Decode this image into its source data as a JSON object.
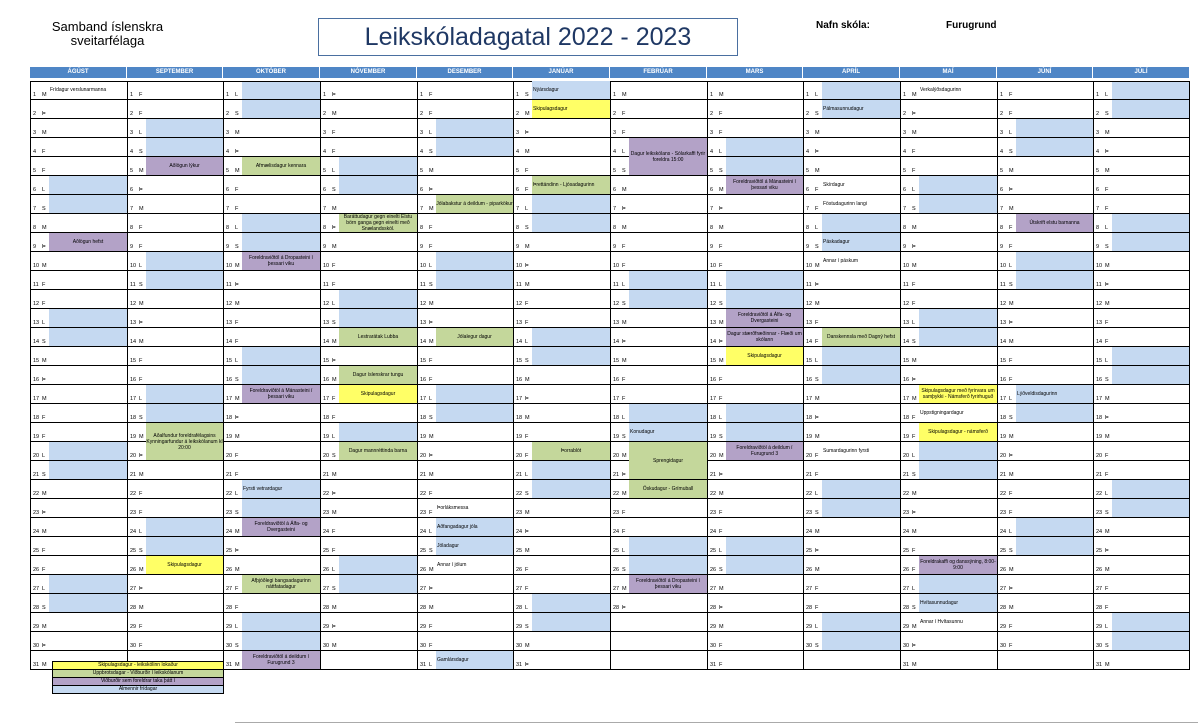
{
  "header": {
    "org_line1": "Samband íslenskra",
    "org_line2": "sveitarfélaga",
    "title": "Leikskóladagatal 2022 - 2023",
    "school_label": "Nafn skóla:",
    "school_value": "Furugrund"
  },
  "colors": {
    "header": "#4f86c6",
    "weekend": "#c5d9f1",
    "yellow": "#ffff66",
    "green": "#c4d79b",
    "purple": "#b3a2c7"
  },
  "months": [
    {
      "name": "ÁGÚST",
      "start": 1,
      "days": 31
    },
    {
      "name": "SEPTEMBER",
      "start": 4,
      "days": 30
    },
    {
      "name": "OKTÓBER",
      "start": 6,
      "days": 31
    },
    {
      "name": "NÓVEMBER",
      "start": 2,
      "days": 30
    },
    {
      "name": "DESEMBER",
      "start": 4,
      "days": 31
    },
    {
      "name": "JANÚAR",
      "start": 0,
      "days": 31
    },
    {
      "name": "FEBRÚAR",
      "start": 3,
      "days": 28
    },
    {
      "name": "MARS",
      "start": 3,
      "days": 31
    },
    {
      "name": "APRÍL",
      "start": 6,
      "days": 30
    },
    {
      "name": "MAÍ",
      "start": 1,
      "days": 31
    },
    {
      "name": "JÚNÍ",
      "start": 4,
      "days": 30
    },
    {
      "name": "JÚLÍ",
      "start": 6,
      "days": 31
    }
  ],
  "weekday_letters": [
    "S",
    "M",
    "Þ",
    "M",
    "F",
    "F",
    "L"
  ],
  "events": [
    {
      "m": 0,
      "d": 1,
      "t": "Frídagur verslunarmanna",
      "c": "",
      "a": "l"
    },
    {
      "m": 0,
      "d": 9,
      "t": "Aðlögun hefst",
      "c": "purple",
      "a": "c"
    },
    {
      "m": 1,
      "d": 5,
      "t": "Aðlögun lýkur",
      "c": "purple",
      "a": "c"
    },
    {
      "m": 1,
      "d": 20,
      "t": "Aðalfundur foreldrafélagsins Kynningarfundur á leikskólanum kl 20:00",
      "c": "green",
      "a": "c",
      "span": 2
    },
    {
      "m": 1,
      "d": 26,
      "t": "Skipulagsdagur",
      "c": "yellow",
      "a": "c"
    },
    {
      "m": 2,
      "d": 5,
      "t": "Afmælisdagur kennara",
      "c": "green",
      "a": "c"
    },
    {
      "m": 2,
      "d": 10,
      "t": "Foreldraviðtöl á Dropasteini í þessari viku",
      "c": "purple",
      "a": "c"
    },
    {
      "m": 2,
      "d": 17,
      "t": "Foreldraviðtöl á Mánasteini í þessari viku",
      "c": "purple",
      "a": "c"
    },
    {
      "m": 2,
      "d": 22,
      "t": "Fyrsti vetrardagur",
      "c": "",
      "a": "l"
    },
    {
      "m": 2,
      "d": 24,
      "t": "Foreldraviðtöl á Álfa- og Dvergasteini",
      "c": "purple",
      "a": "c"
    },
    {
      "m": 2,
      "d": 27,
      "t": "Afþjóðlegi bangsadagurinn náttfatadagur",
      "c": "green",
      "a": "c"
    },
    {
      "m": 2,
      "d": 31,
      "t": "Foreldraviðtöl á deildum í Furugrund 3",
      "c": "purple",
      "a": "c"
    },
    {
      "m": 3,
      "d": 8,
      "t": "Baráttudagur gegn einelti Elstu börn ganga gegn einelti með Snælandsskól.",
      "c": "green",
      "a": "c"
    },
    {
      "m": 3,
      "d": 14,
      "t": "Lestrarátak Lubba",
      "c": "green",
      "a": "c"
    },
    {
      "m": 3,
      "d": 16,
      "t": "Dagur íslenskrar tungu",
      "c": "green",
      "a": "c"
    },
    {
      "m": 3,
      "d": 17,
      "t": "Skipulagsdagur",
      "c": "yellow",
      "a": "c"
    },
    {
      "m": 3,
      "d": 20,
      "t": "Dagur mannréttinda barna",
      "c": "green",
      "a": "c"
    },
    {
      "m": 4,
      "d": 7,
      "t": "Jólabakstur á deildum - piparkökur",
      "c": "green",
      "a": "c"
    },
    {
      "m": 4,
      "d": 14,
      "t": "Jólalegur dagur",
      "c": "green",
      "a": "c"
    },
    {
      "m": 4,
      "d": 23,
      "t": "Þorláksmessa",
      "c": "",
      "a": "l"
    },
    {
      "m": 4,
      "d": 24,
      "t": "Aðfangadagur jóla",
      "c": "",
      "a": "l"
    },
    {
      "m": 4,
      "d": 25,
      "t": "Jóladagur",
      "c": "",
      "a": "l"
    },
    {
      "m": 4,
      "d": 26,
      "t": "Annar í jólum",
      "c": "",
      "a": "l"
    },
    {
      "m": 4,
      "d": 31,
      "t": "Gamlársdagur",
      "c": "",
      "a": "l"
    },
    {
      "m": 5,
      "d": 1,
      "t": "Nýársdagur",
      "c": "",
      "a": "l"
    },
    {
      "m": 5,
      "d": 2,
      "t": "Skipulagsdagur",
      "c": "yellow",
      "a": "l"
    },
    {
      "m": 5,
      "d": 6,
      "t": "Þrettándinn - Ljósadagurinn",
      "c": "green",
      "a": "l"
    },
    {
      "m": 5,
      "d": 20,
      "t": "Þorrablót",
      "c": "green",
      "a": "c"
    },
    {
      "m": 6,
      "d": 5,
      "t": "Dagur leikskólans - Sólarkaffi fyrir foreldra 15:00",
      "c": "purple",
      "a": "c",
      "span": 2
    },
    {
      "m": 6,
      "d": 19,
      "t": "Konudagur",
      "c": "",
      "a": "l"
    },
    {
      "m": 6,
      "d": 20,
      "t": "Bolludagur",
      "c": "green",
      "a": "c"
    },
    {
      "m": 6,
      "d": 21,
      "t": "Sprengidagur",
      "c": "green",
      "a": "c",
      "span": 2
    },
    {
      "m": 6,
      "d": 22,
      "t": "Öskudagur - Grímuball",
      "c": "green",
      "a": "c"
    },
    {
      "m": 6,
      "d": 27,
      "t": "Foreldraviðtöl á Dropasteini í þessari viku",
      "c": "purple",
      "a": "c"
    },
    {
      "m": 7,
      "d": 6,
      "t": "Foreldraviðtöl á Mánasteini í þessari viku",
      "c": "purple",
      "a": "c"
    },
    {
      "m": 7,
      "d": 13,
      "t": "Foreldraviðtöl á Álfa- og Dvergasteini",
      "c": "purple",
      "a": "c"
    },
    {
      "m": 7,
      "d": 14,
      "t": "Dagur stærðfræðinnar - Flæði um skólann",
      "c": "purple",
      "a": "c"
    },
    {
      "m": 7,
      "d": 15,
      "t": "Skipulagsdagur",
      "c": "yellow",
      "a": "c"
    },
    {
      "m": 7,
      "d": 20,
      "t": "Foreldraviðtöl á deildum í Furugrund 3",
      "c": "purple",
      "a": "c"
    },
    {
      "m": 8,
      "d": 2,
      "t": "Pálmasunnudagur",
      "c": "",
      "a": "l"
    },
    {
      "m": 8,
      "d": 6,
      "t": "Skírdagur",
      "c": "",
      "a": "l"
    },
    {
      "m": 8,
      "d": 7,
      "t": "Föstudagurinn langi",
      "c": "",
      "a": "l"
    },
    {
      "m": 8,
      "d": 9,
      "t": "Páskadagur",
      "c": "",
      "a": "l"
    },
    {
      "m": 8,
      "d": 10,
      "t": "Annar í páskum",
      "c": "",
      "a": "l"
    },
    {
      "m": 8,
      "d": 14,
      "t": "Danskennsla með Dagný hefst",
      "c": "green",
      "a": "c"
    },
    {
      "m": 8,
      "d": 20,
      "t": "Sumardagurinn fyrsti",
      "c": "",
      "a": "l"
    },
    {
      "m": 9,
      "d": 1,
      "t": "Verkalýðsdagurinn",
      "c": "",
      "a": "l"
    },
    {
      "m": 9,
      "d": 17,
      "t": "Skipulagsdagur með fyrirvara um samþykki - Námsferð fyrirhuguð",
      "c": "yellow",
      "a": "c"
    },
    {
      "m": 9,
      "d": 18,
      "t": "Uppstigningardagur",
      "c": "",
      "a": "l"
    },
    {
      "m": 9,
      "d": 19,
      "t": "Skipulagsdagur - námsferð",
      "c": "yellow",
      "a": "c"
    },
    {
      "m": 9,
      "d": 26,
      "t": "Foreldrakaffi og danssýning, 8:00-9:00",
      "c": "purple",
      "a": "c"
    },
    {
      "m": 9,
      "d": 28,
      "t": "Hvítasunnudagur",
      "c": "",
      "a": "l"
    },
    {
      "m": 9,
      "d": 29,
      "t": "Annar í Hvítasunnu",
      "c": "",
      "a": "l"
    },
    {
      "m": 10,
      "d": 8,
      "t": "Útskrift elstu barnanna",
      "c": "purple",
      "a": "c"
    },
    {
      "m": 10,
      "d": 17,
      "t": "Lýðveldisdagurinn",
      "c": "",
      "a": "l"
    }
  ],
  "legend": [
    {
      "t": "Skipulagsdagur - leikskólinn lokaður",
      "c": "yellow"
    },
    {
      "t": "Uppbrotsdagar - Viðburðir í leikskólanum",
      "c": "green"
    },
    {
      "t": "Viðburðir sem foreldrar taka þátt í",
      "c": "purple"
    },
    {
      "t": "Almennir frídagar",
      "c": "blue"
    }
  ]
}
